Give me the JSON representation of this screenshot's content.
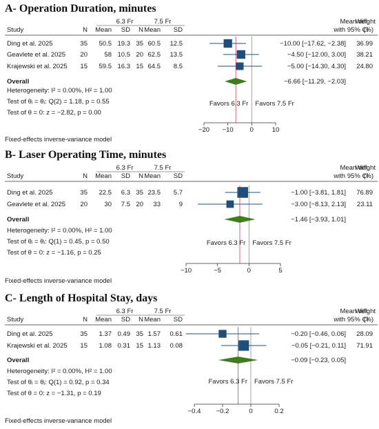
{
  "chart_data": [
    {
      "type": "forest",
      "title": "A- Operation Duration, minutes",
      "group_labels": [
        "6.3 Fr",
        "7.5 Fr"
      ],
      "columns": [
        "Study",
        "N",
        "Mean",
        "SD",
        "N",
        "Mean",
        "SD"
      ],
      "effect_header": [
        "Mean diff.",
        "with 95% CI"
      ],
      "weight_header": [
        "Weight",
        "(%)"
      ],
      "studies": [
        {
          "name": "Ding et al. 2025",
          "g1": [
            "35",
            "50.5",
            "19.3"
          ],
          "g2": [
            "35",
            "60.5",
            "12.5"
          ],
          "est": -10.0,
          "lo": -17.62,
          "hi": -2.38,
          "ci_text": "−10.00 [−17.62, −2.38]",
          "weight": 36.99,
          "weight_text": "36.99"
        },
        {
          "name": "Geavlete et al. 2025",
          "g1": [
            "20",
            "58",
            "10.5"
          ],
          "g2": [
            "20",
            "62.5",
            "13.5"
          ],
          "est": -4.5,
          "lo": -12.0,
          "hi": 3.0,
          "ci_text": "−4.50 [−12.00, 3.00]",
          "weight": 38.21,
          "weight_text": "38.21"
        },
        {
          "name": "Krajewski et al. 2025",
          "g1": [
            "15",
            "59.5",
            "16.3"
          ],
          "g2": [
            "15",
            "64.5",
            "8.5"
          ],
          "est": -5.0,
          "lo": -14.3,
          "hi": 4.3,
          "ci_text": "−5.00 [−14.30, 4.30]",
          "weight": 24.8,
          "weight_text": "24.80"
        }
      ],
      "overall": {
        "label": "Overall",
        "est": -6.66,
        "lo": -11.29,
        "hi": -2.03,
        "ci_text": "−6.66 [−11.29, −2.03]"
      },
      "notes": [
        "Heterogeneity: I² = 0.00%, H² = 1.00",
        "Test of θᵢ = θⱼ: Q(2) = 1.18, p = 0.55",
        "Test of θ = 0: z = −2.82, p = 0.00"
      ],
      "favors": [
        "Favors 6.3 Fr",
        "Favors 7.5 Fr"
      ],
      "xlim": [
        -20,
        10
      ],
      "ticks": [
        -20,
        -10,
        0,
        10
      ],
      "tick_labels": [
        "−20",
        "−10",
        "0",
        "10"
      ],
      "model_note": "Fixed-effects inverse-variance model"
    },
    {
      "type": "forest",
      "title": "B- Laser Operating Time, minutes",
      "group_labels": [
        "6.3 Fr",
        "7.5 Fr"
      ],
      "columns": [
        "Study",
        "N",
        "Mean",
        "SD",
        "N",
        "Mean",
        "SD"
      ],
      "effect_header": [
        "Mean diff.",
        "with 95% CI"
      ],
      "weight_header": [
        "Weight",
        "(%)"
      ],
      "studies": [
        {
          "name": "Ding et al. 2025",
          "g1": [
            "35",
            "22.5",
            "6.3"
          ],
          "g2": [
            "35",
            "23.5",
            "5.7"
          ],
          "est": -1.0,
          "lo": -3.81,
          "hi": 1.81,
          "ci_text": "−1.00 [−3.81, 1.81]",
          "weight": 76.89,
          "weight_text": "76.89"
        },
        {
          "name": "Geavlete et al. 2025",
          "g1": [
            "20",
            "30",
            "7.5"
          ],
          "g2": [
            "20",
            "33",
            "9"
          ],
          "est": -3.0,
          "lo": -8.13,
          "hi": 2.13,
          "ci_text": "−3.00 [−8.13, 2.13]",
          "weight": 23.11,
          "weight_text": "23.11"
        }
      ],
      "overall": {
        "label": "Overall",
        "est": -1.46,
        "lo": -3.93,
        "hi": 1.01,
        "ci_text": "−1.46 [−3.93, 1.01]"
      },
      "notes": [
        "Heterogeneity: I² = 0.00%, H² = 1.00",
        "Test of θᵢ = θⱼ: Q(1) = 0.45, p = 0.50",
        "Test of θ = 0: z = −1.16, p = 0.25"
      ],
      "favors": [
        "Favors 6.3 Fr",
        "Favors 7.5 Fr"
      ],
      "xlim": [
        -10,
        5
      ],
      "ticks": [
        -10,
        -5,
        0,
        5
      ],
      "tick_labels": [
        "−10",
        "−5",
        "0",
        "5"
      ],
      "model_note": "Fixed-effects inverse-variance model"
    },
    {
      "type": "forest",
      "title": "C- Length of Hospital Stay, days",
      "group_labels": [
        "6.3 Fr",
        "7.5 Fr"
      ],
      "columns": [
        "Study",
        "N",
        "Mean",
        "SD",
        "N",
        "Mean",
        "SD"
      ],
      "effect_header": [
        "Mean diff.",
        "with 95% CI"
      ],
      "weight_header": [
        "Weight",
        "(%)"
      ],
      "studies": [
        {
          "name": "Ding et al. 2025",
          "g1": [
            "35",
            "1.37",
            "0.49"
          ],
          "g2": [
            "35",
            "1.57",
            "0.61"
          ],
          "est": -0.2,
          "lo": -0.46,
          "hi": 0.06,
          "ci_text": "−0.20 [−0.46, 0.06]",
          "weight": 28.09,
          "weight_text": "28.09"
        },
        {
          "name": "Krajewski et al. 2025",
          "g1": [
            "15",
            "1.08",
            "0.31"
          ],
          "g2": [
            "15",
            "1.13",
            "0.08"
          ],
          "est": -0.05,
          "lo": -0.21,
          "hi": 0.11,
          "ci_text": "−0.05 [−0.21, 0.11]",
          "weight": 71.91,
          "weight_text": "71.91"
        }
      ],
      "overall": {
        "label": "Overall",
        "est": -0.09,
        "lo": -0.23,
        "hi": 0.05,
        "ci_text": "−0.09 [−0.23, 0.05]"
      },
      "notes": [
        "Heterogeneity: I² = 0.00%, H² = 1.00",
        "Test of θᵢ = θⱼ: Q(1) = 0.92, p = 0.34",
        "Test of θ = 0: z = −1.31, p = 0.19"
      ],
      "favors": [
        "Favors 6.3 Fr",
        "Favors 7.5 Fr"
      ],
      "xlim": [
        -0.4,
        0.2
      ],
      "ticks": [
        -0.4,
        -0.2,
        0,
        0.2
      ],
      "tick_labels": [
        "−0.4",
        "−0.2",
        "0",
        "0.2"
      ],
      "model_note": "Fixed-effects inverse-variance model"
    }
  ],
  "colors": {
    "marker": "#1f4e79",
    "ci_line": "#1f4e79",
    "diamond": "#3f7d20",
    "null_line": "#8c8c8c",
    "overall_line": "#d9506b",
    "text": "#1a1a1a"
  }
}
